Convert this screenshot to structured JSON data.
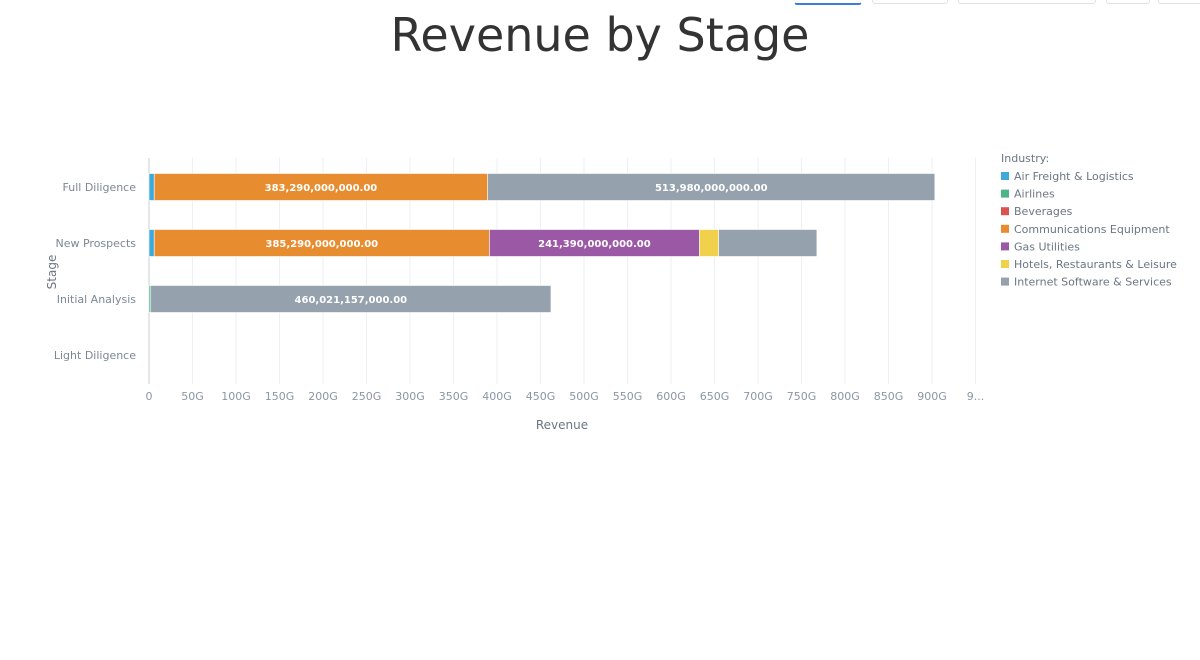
{
  "chart_data": {
    "type": "bar",
    "orientation": "horizontal",
    "stacked": true,
    "title": "Revenue by Stage",
    "xlabel": "Revenue",
    "ylabel": "Stage",
    "xlim": [
      0,
      950000000000
    ],
    "x_ticks": [
      "0",
      "50G",
      "100G",
      "150G",
      "200G",
      "250G",
      "300G",
      "350G",
      "400G",
      "450G",
      "500G",
      "550G",
      "600G",
      "650G",
      "700G",
      "750G",
      "800G",
      "850G",
      "900G",
      "9..."
    ],
    "grid": true,
    "legend_title": "Industry:",
    "legend_position": "right",
    "categories": [
      "Full Diligence",
      "New Prospects",
      "Initial Analysis",
      "Light Diligence"
    ],
    "series": [
      {
        "name": "Air Freight & Logistics",
        "color": "#3fa9d9",
        "values": [
          6000000000,
          6000000000,
          0,
          0
        ]
      },
      {
        "name": "Airlines",
        "color": "#4db388",
        "values": [
          0,
          0,
          2000000000,
          0
        ]
      },
      {
        "name": "Beverages",
        "color": "#d9534f",
        "values": [
          0,
          0,
          0,
          0
        ]
      },
      {
        "name": "Communications Equipment",
        "color": "#e88c30",
        "values": [
          383290000000,
          385290000000,
          0,
          0
        ]
      },
      {
        "name": "Gas Utilities",
        "color": "#9b58a5",
        "values": [
          0,
          241390000000,
          0,
          0
        ]
      },
      {
        "name": "Hotels, Restaurants & Leisure",
        "color": "#f1d04b",
        "values": [
          0,
          22000000000,
          0,
          0
        ]
      },
      {
        "name": "Internet Software & Services",
        "color": "#95a1ad",
        "values": [
          513980000000,
          113000000000,
          460021157000,
          0
        ]
      }
    ],
    "data_labels": [
      {
        "category": "Full Diligence",
        "series": "Communications Equipment",
        "text": "383,290,000,000.00"
      },
      {
        "category": "Full Diligence",
        "series": "Internet Software & Services",
        "text": "513,980,000,000.00"
      },
      {
        "category": "New Prospects",
        "series": "Communications Equipment",
        "text": "385,290,000,000.00"
      },
      {
        "category": "New Prospects",
        "series": "Gas Utilities",
        "text": "241,390,000,000.00"
      },
      {
        "category": "Initial Analysis",
        "series": "Internet Software & Services",
        "text": "460,021,157,000.00"
      }
    ]
  }
}
